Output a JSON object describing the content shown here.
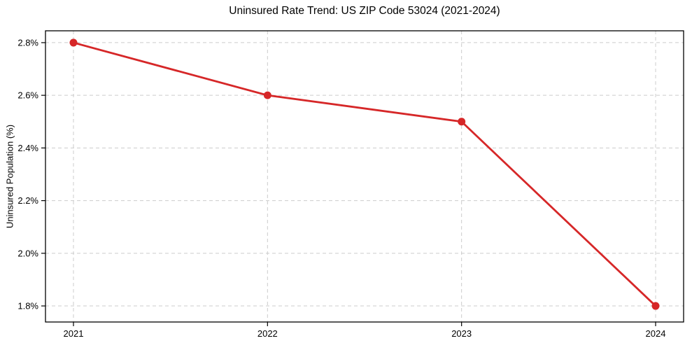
{
  "chart_data": {
    "type": "line",
    "title": "Uninsured Rate Trend: US ZIP Code 53024 (2021-2024)",
    "xlabel": "",
    "ylabel": "Uninsured Population (%)",
    "categories": [
      "2021",
      "2022",
      "2023",
      "2024"
    ],
    "series": [
      {
        "name": "Uninsured Population (%)",
        "values": [
          2.8,
          2.6,
          2.5,
          1.8
        ],
        "color": "#d62728",
        "marker": "circle",
        "line_width": 2.8,
        "marker_radius": 5.5
      }
    ],
    "yticks": [
      {
        "value": 1.8,
        "label": "1.8%"
      },
      {
        "value": 2.0,
        "label": "2.0%"
      },
      {
        "value": 2.2,
        "label": "2.2%"
      },
      {
        "value": 2.4,
        "label": "2.4%"
      },
      {
        "value": 2.6,
        "label": "2.6%"
      },
      {
        "value": 2.8,
        "label": "2.8%"
      }
    ],
    "ylim": [
      1.739,
      2.845
    ],
    "grid": true,
    "grid_style": "dashed",
    "grid_color": "#cccccc",
    "spine_color": "#000000",
    "tick_color": "#000000",
    "text_color": "#000000",
    "background": "#ffffff",
    "legend": "none"
  }
}
